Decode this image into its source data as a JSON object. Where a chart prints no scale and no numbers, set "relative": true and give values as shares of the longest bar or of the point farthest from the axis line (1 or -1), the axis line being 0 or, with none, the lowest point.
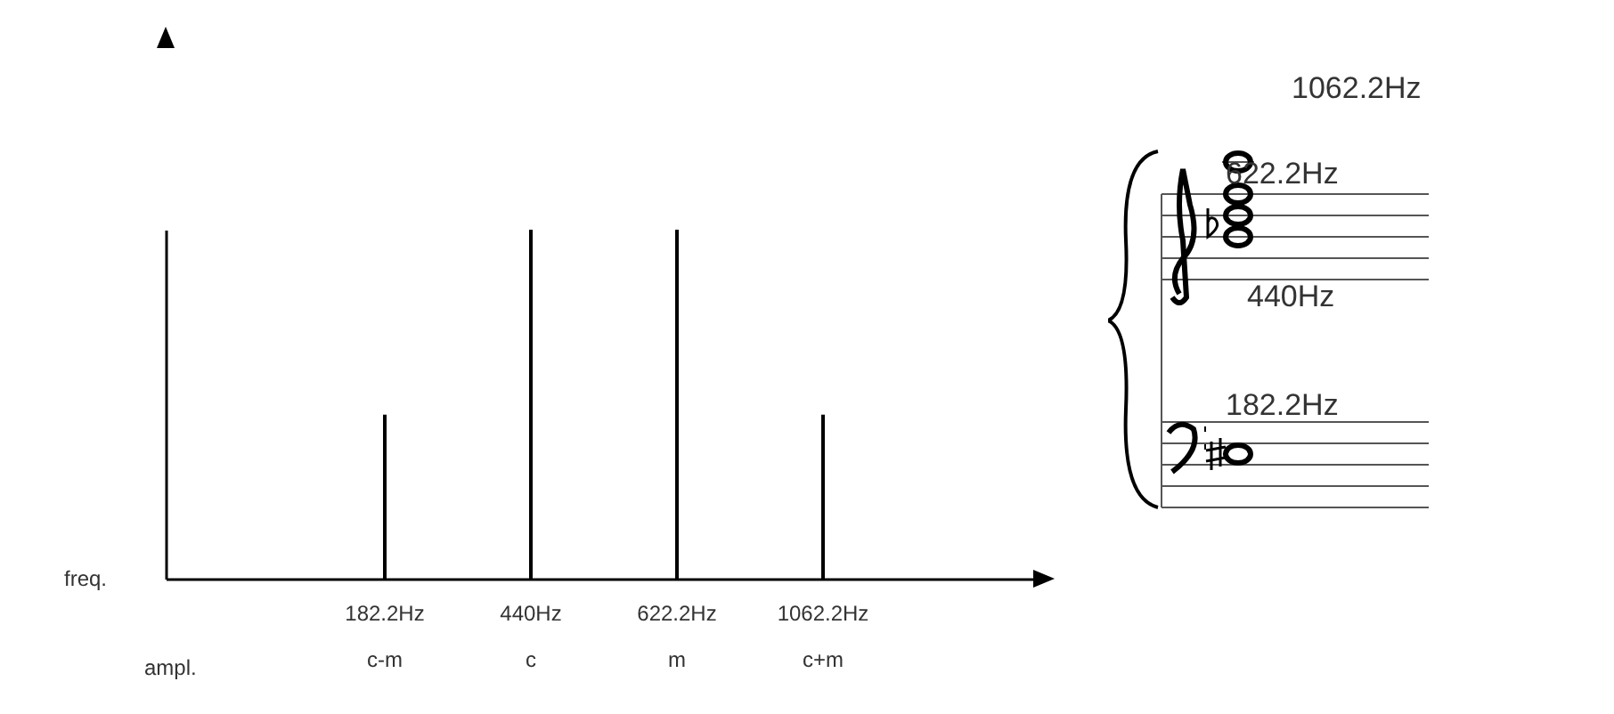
{
  "chart_data": {
    "type": "bar",
    "relative": true,
    "categories": [
      "182.2Hz\nc-m",
      "440Hz\nc",
      "622.2Hz\nm",
      "1062.2Hz\nc+m"
    ],
    "values": [
      0.47,
      1,
      1,
      0.47
    ],
    "color": "#000000",
    "grid": false,
    "annotations": [
      "freq.",
      "ampl.",
      "1062.2Hz",
      "622.2Hz",
      "440Hz",
      "182.2Hz"
    ]
  }
}
